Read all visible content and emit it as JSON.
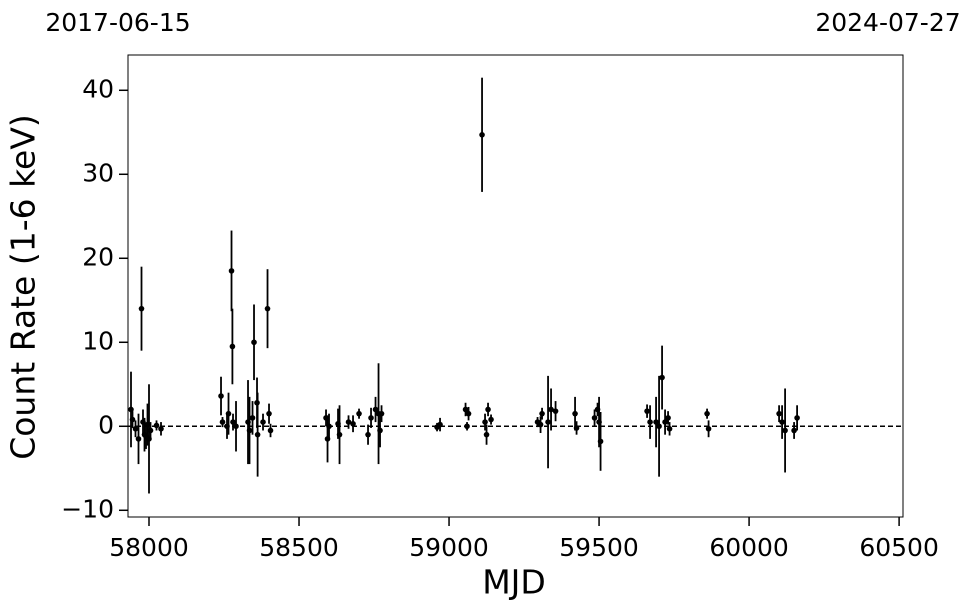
{
  "chart_data": {
    "type": "scatter",
    "top_labels": [
      "2017-06-15",
      "2024-07-27"
    ],
    "xlabel": "MJD",
    "ylabel": "Count Rate (1-6 keV)",
    "xlim": [
      57930,
      60513
    ],
    "ylim": [
      -10.8,
      44.2
    ],
    "xticks": [
      58000,
      58500,
      59000,
      59500,
      60000,
      60500
    ],
    "yticks": [
      {
        "value": -10,
        "label": "−10"
      },
      0,
      10,
      20,
      30,
      40
    ],
    "hline": 0,
    "color": "#000000",
    "x": [
      57940,
      57945,
      57955,
      57965,
      57975,
      57980,
      57985,
      57990,
      57995,
      58000,
      58005,
      58025,
      58040,
      58240,
      58245,
      58260,
      58265,
      58275,
      58278,
      58280,
      58290,
      58330,
      58335,
      58345,
      58350,
      58360,
      58362,
      58380,
      58395,
      58400,
      58405,
      58590,
      58595,
      58600,
      58630,
      58635,
      58665,
      58680,
      58700,
      58730,
      58740,
      58755,
      58765,
      58770,
      58775,
      58960,
      58970,
      59055,
      59060,
      59065,
      59110,
      59120,
      59125,
      59130,
      59140,
      59295,
      59305,
      59310,
      59330,
      59340,
      59355,
      59420,
      59425,
      59485,
      59495,
      59500,
      59505,
      59660,
      59670,
      59690,
      59700,
      59710,
      59720,
      59730,
      59735,
      59860,
      59865,
      60100,
      60110,
      60120,
      60150,
      60160
    ],
    "values": [
      2.0,
      0.8,
      -0.3,
      -1.5,
      14.0,
      0.5,
      -1.0,
      -1.2,
      0.2,
      -1.5,
      -0.5,
      0.1,
      -0.3,
      3.6,
      0.5,
      0.0,
      1.5,
      18.5,
      9.5,
      0.5,
      0.0,
      0.5,
      -0.5,
      1.0,
      10.0,
      2.8,
      -1.0,
      0.5,
      14.0,
      1.5,
      -0.5,
      1.0,
      -1.5,
      0.0,
      0.3,
      -1.0,
      0.5,
      0.3,
      1.5,
      -1.0,
      1.0,
      2.0,
      1.5,
      -0.5,
      1.5,
      -0.1,
      0.2,
      2.0,
      0.0,
      1.5,
      34.7,
      0.5,
      -1.0,
      2.0,
      0.8,
      0.5,
      0.2,
      1.5,
      0.5,
      2.0,
      1.8,
      1.5,
      -0.2,
      1.0,
      2.0,
      0.5,
      -1.8,
      1.8,
      0.5,
      0.5,
      0.0,
      5.8,
      0.5,
      1.0,
      -0.3,
      1.5,
      -0.3,
      1.5,
      0.5,
      -0.5,
      -0.5,
      1.0
    ],
    "errors": [
      4.5,
      1.0,
      1.0,
      3.0,
      5.0,
      1.5,
      2.0,
      1.5,
      2.5,
      6.5,
      1.0,
      0.6,
      0.8,
      2.3,
      0.6,
      1.5,
      2.5,
      4.8,
      4.5,
      1.0,
      3.0,
      5.0,
      4.0,
      2.0,
      4.5,
      3.0,
      5.0,
      1.0,
      4.7,
      1.2,
      0.8,
      1.0,
      2.8,
      1.5,
      1.8,
      3.5,
      0.8,
      1.0,
      0.6,
      1.2,
      1.2,
      1.5,
      6.0,
      2.0,
      1.0,
      0.5,
      0.8,
      0.8,
      0.5,
      0.8,
      6.8,
      1.0,
      1.2,
      0.8,
      0.6,
      0.6,
      1.0,
      0.7,
      5.5,
      2.5,
      1.2,
      2.0,
      0.8,
      1.0,
      0.8,
      3.0,
      3.5,
      0.8,
      2.0,
      3.0,
      6.0,
      3.8,
      1.5,
      0.8,
      0.8,
      0.6,
      1.0,
      1.0,
      2.0,
      5.0,
      1.0,
      1.5
    ]
  }
}
